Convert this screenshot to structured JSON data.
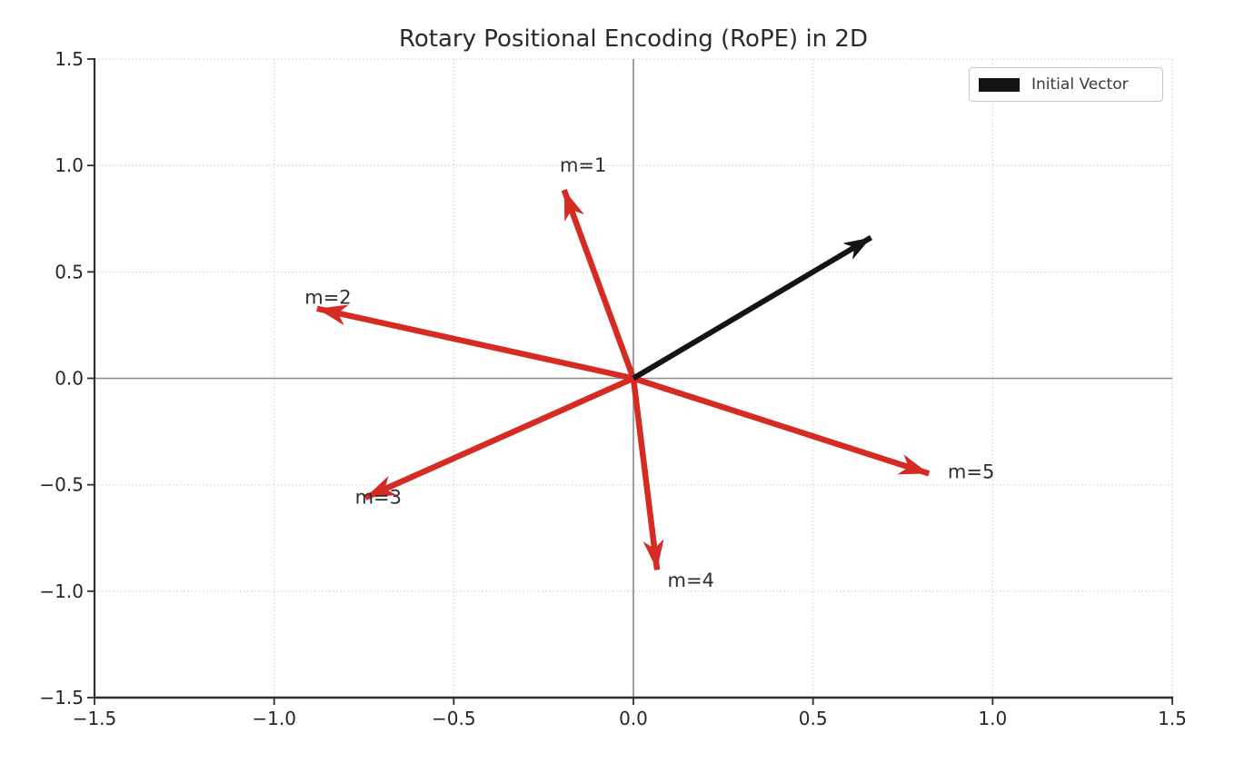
{
  "title": "Rotary Positional Encoding (RoPE) in 2D",
  "legend": {
    "position": "upper right",
    "items": [
      {
        "label": "Initial Vector",
        "color": "#141414"
      }
    ]
  },
  "chart_data": {
    "type": "quiver",
    "title": "Rotary Positional Encoding (RoPE) in 2D",
    "xlabel": "",
    "ylabel": "",
    "xlim": [
      -1.5,
      1.5
    ],
    "ylim": [
      -1.5,
      1.5
    ],
    "xticks": [
      -1.5,
      -1.0,
      -0.5,
      0.0,
      0.5,
      1.0,
      1.5
    ],
    "xtick_labels": [
      "−1.5",
      "−1.0",
      "−0.5",
      "0.0",
      "0.5",
      "1.0",
      "1.5"
    ],
    "yticks": [
      -1.5,
      -1.0,
      -0.5,
      0.0,
      0.5,
      1.0,
      1.5
    ],
    "ytick_labels": [
      "−1.5",
      "−1.0",
      "−0.5",
      "0.0",
      "0.5",
      "1.0",
      "1.5"
    ],
    "grid": true,
    "zero_axes": true,
    "origin": [
      0,
      0
    ],
    "legend_position": "upper right",
    "vectors": [
      {
        "name": "initial-vector",
        "x": 0.7071,
        "y": 0.7071,
        "color": "#141414",
        "in_legend": true
      },
      {
        "name": "m1",
        "x": -0.213,
        "y": 0.9771,
        "color": "#d62b22",
        "in_legend": false
      },
      {
        "name": "m2",
        "x": -0.9373,
        "y": 0.3486,
        "color": "#d62b22",
        "in_legend": false
      },
      {
        "name": "m3",
        "x": -0.7992,
        "y": -0.6006,
        "color": "#d62b22",
        "in_legend": false
      },
      {
        "name": "m4",
        "x": 0.073,
        "y": -0.9973,
        "color": "#d62b22",
        "in_legend": false
      },
      {
        "name": "m5",
        "x": 0.878,
        "y": -0.4777,
        "color": "#d62b22",
        "in_legend": false
      }
    ],
    "annotations": [
      {
        "text": "m=1",
        "x": -0.14,
        "y": 1.0
      },
      {
        "text": "m=2",
        "x": -0.85,
        "y": 0.38
      },
      {
        "text": "m=3",
        "x": -0.71,
        "y": -0.56
      },
      {
        "text": "m=4",
        "x": 0.16,
        "y": -0.95
      },
      {
        "text": "m=5",
        "x": 0.94,
        "y": -0.44
      }
    ],
    "colors": {
      "initial_vector": "#141414",
      "rotated_vectors": "#d62b22",
      "grid": "#cfcfcf",
      "zero_axis": "#8a8a8a",
      "spine": "#2f2f2f",
      "text": "#2e2e2e"
    }
  }
}
